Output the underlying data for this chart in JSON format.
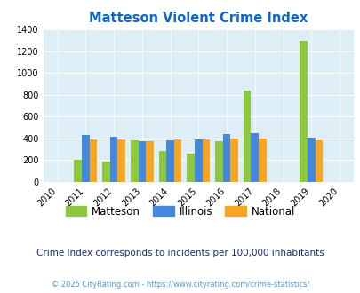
{
  "title": "Matteson Violent Crime Index",
  "years": [
    2010,
    2011,
    2012,
    2013,
    2014,
    2015,
    2016,
    2017,
    2018,
    2019,
    2020
  ],
  "data_years": [
    2011,
    2012,
    2013,
    2014,
    2015,
    2016,
    2017,
    2019
  ],
  "matteson": [
    200,
    185,
    380,
    285,
    260,
    370,
    835,
    1290
  ],
  "illinois": [
    430,
    415,
    375,
    380,
    390,
    435,
    445,
    405
  ],
  "national": [
    390,
    390,
    375,
    385,
    390,
    400,
    400,
    380
  ],
  "color_matteson": "#8dc63f",
  "color_illinois": "#4488dd",
  "color_national": "#f5a623",
  "background_color": "#ddeef6",
  "title_color": "#1166cc",
  "subtitle_color": "#1a2a6c",
  "footer_color": "#5599cc",
  "subtitle": "Crime Index corresponds to incidents per 100,000 inhabitants",
  "footer": "© 2025 CityRating.com - https://www.cityrating.com/crime-statistics/",
  "ylim": [
    0,
    1400
  ],
  "yticks": [
    0,
    200,
    400,
    600,
    800,
    1000,
    1200,
    1400
  ],
  "bar_width": 0.27,
  "xlim": [
    2009.5,
    2020.5
  ]
}
